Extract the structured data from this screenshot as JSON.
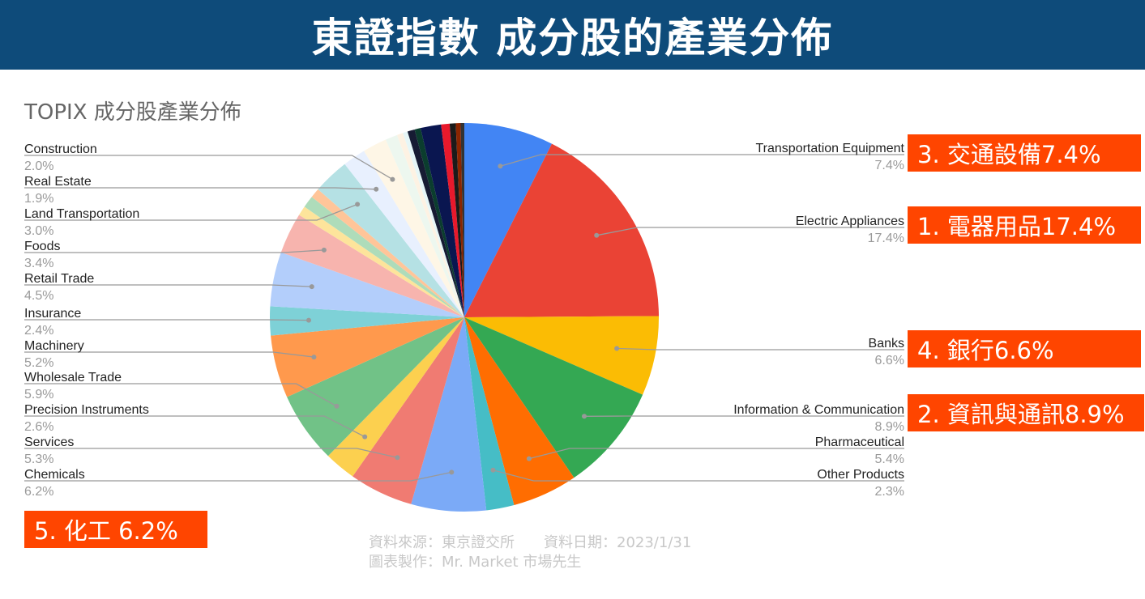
{
  "banner": {
    "title": "東證指數 成分股的產業分佈"
  },
  "chart_title": "TOPIX 成分股產業分佈",
  "chart_data": {
    "type": "pie",
    "title": "TOPIX 成分股產業分佈",
    "slices": [
      {
        "label": "Transportation Equipment",
        "value_label": "7.4%",
        "value": 7.4,
        "color": "#4285f4",
        "side": "right"
      },
      {
        "label": "Electric Appliances",
        "value_label": "17.4%",
        "value": 17.4,
        "color": "#ea4335",
        "side": "right"
      },
      {
        "label": "Banks",
        "value_label": "6.6%",
        "value": 6.6,
        "color": "#fbbc04",
        "side": "right"
      },
      {
        "label": "Information & Communication",
        "value_label": "8.9%",
        "value": 8.9,
        "color": "#34a853",
        "side": "right"
      },
      {
        "label": "Pharmaceutical",
        "value_label": "5.4%",
        "value": 5.4,
        "color": "#ff6d01",
        "side": "right"
      },
      {
        "label": "Other Products",
        "value_label": "2.3%",
        "value": 2.3,
        "color": "#46bdc6",
        "side": "right"
      },
      {
        "label": "Chemicals",
        "value_label": "6.2%",
        "value": 6.2,
        "color": "#7baaf7",
        "side": "left"
      },
      {
        "label": "Services",
        "value_label": "5.3%",
        "value": 5.3,
        "color": "#f07b72",
        "side": "left"
      },
      {
        "label": "Precision Instruments",
        "value_label": "2.6%",
        "value": 2.6,
        "color": "#fcd04f",
        "side": "left"
      },
      {
        "label": "Wholesale Trade",
        "value_label": "5.9%",
        "value": 5.9,
        "color": "#71c287",
        "side": "left"
      },
      {
        "label": "Machinery",
        "value_label": "5.2%",
        "value": 5.2,
        "color": "#ff994d",
        "side": "left"
      },
      {
        "label": "Insurance",
        "value_label": "2.4%",
        "value": 2.4,
        "color": "#7ed1d7",
        "side": "left"
      },
      {
        "label": "Retail Trade",
        "value_label": "4.5%",
        "value": 4.5,
        "color": "#b3cefb",
        "side": "left"
      },
      {
        "label": "Foods",
        "value_label": "3.4%",
        "value": 3.4,
        "color": "#f7b4ae",
        "side": "left"
      },
      {
        "label": null,
        "value": 0.8,
        "color": "#fde49b",
        "side": null
      },
      {
        "label": null,
        "value": 1.0,
        "color": "#aedcba",
        "side": null
      },
      {
        "label": null,
        "value": 0.8,
        "color": "#ffc599",
        "side": null
      },
      {
        "label": "Land Transportation",
        "value_label": "3.0%",
        "value": 3.0,
        "color": "#b5e1e4",
        "side": "left"
      },
      {
        "label": "Real Estate",
        "value_label": "1.9%",
        "value": 1.9,
        "color": "#e8f0fe",
        "side": "left"
      },
      {
        "label": "Construction",
        "value_label": "2.0%",
        "value": 2.0,
        "color": "#fef6e6",
        "side": "left"
      },
      {
        "label": null,
        "value": 1.0,
        "color": "#edf7ef",
        "side": null
      },
      {
        "label": null,
        "value": 0.5,
        "color": "#fdf2e3",
        "side": null
      },
      {
        "label": null,
        "value": 0.4,
        "color": "#e6f6f7",
        "side": null
      },
      {
        "label": null,
        "value": 0.6,
        "color": "#161b33",
        "side": null
      },
      {
        "label": null,
        "value": 0.5,
        "color": "#0b3d2e",
        "side": null
      },
      {
        "label": null,
        "value": 1.7,
        "color": "#0a1650",
        "side": null
      },
      {
        "label": null,
        "value": 0.7,
        "color": "#e8192c",
        "side": null
      },
      {
        "label": null,
        "value": 0.5,
        "color": "#1a1a1a",
        "side": null
      },
      {
        "label": null,
        "value": 0.4,
        "color": "#8b2500",
        "side": null
      },
      {
        "label": null,
        "value": 0.3,
        "color": "#333333",
        "side": null
      }
    ]
  },
  "callouts": {
    "c1": "1. 電器用品17.4%",
    "c2": "2. 資訊與通訊8.9%",
    "c3": "3. 交通設備7.4%",
    "c4": "4. 銀行6.6%",
    "c5": "5. 化工 6.2%"
  },
  "colors": {
    "banner_bg": "#0e4b7a",
    "callout_bg": "#ff4500",
    "leader_line": "#999999"
  },
  "source": {
    "line1": "資料來源：東京證交所　　資料日期：2023/1/31",
    "line2": "圖表製作：Mr. Market 市場先生"
  }
}
